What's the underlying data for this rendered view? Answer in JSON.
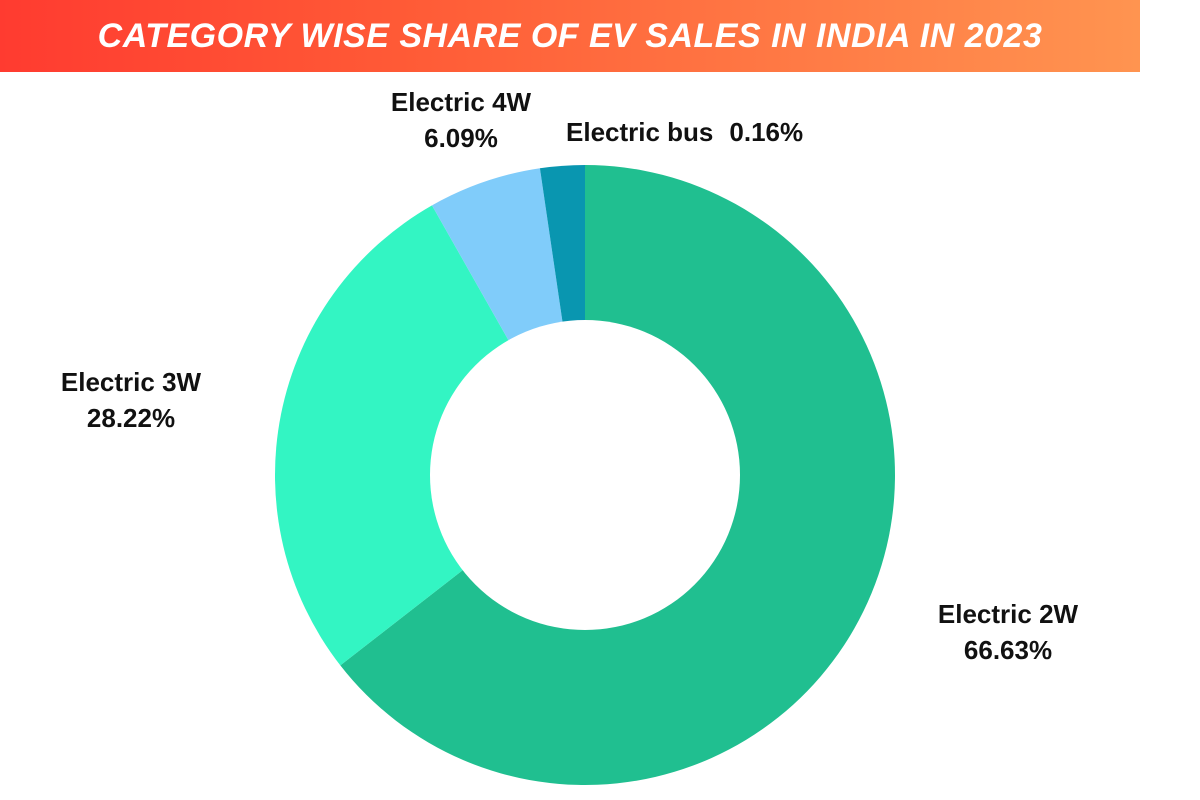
{
  "header": {
    "title": "CATEGORY WISE SHARE OF EV SALES IN INDIA IN 2023",
    "gradient_start": "#ff3b30",
    "gradient_end": "#ff9450"
  },
  "labels": {
    "e2w": {
      "name": "Electric 2W",
      "value": "66.63%"
    },
    "e3w": {
      "name": "Electric 3W",
      "value": "28.22%"
    },
    "e4w": {
      "name": "Electric 4W",
      "value": "6.09%"
    },
    "bus": {
      "name": "Electric bus",
      "value": "0.16%"
    }
  },
  "chart_data": {
    "type": "pie",
    "subtype": "donut",
    "title": "CATEGORY WISE SHARE OF EV SALES IN INDIA IN 2023",
    "categories": [
      "Electric 2W",
      "Electric 3W",
      "Electric 4W",
      "Electric bus"
    ],
    "values": [
      66.63,
      28.22,
      6.09,
      0.16
    ],
    "unit": "%",
    "colors": [
      "#20bf90",
      "#33f5c3",
      "#80ccfa",
      "#0996b0"
    ],
    "start_angle": "top (12 o'clock), clockwise",
    "legend": "none (direct labels)"
  }
}
